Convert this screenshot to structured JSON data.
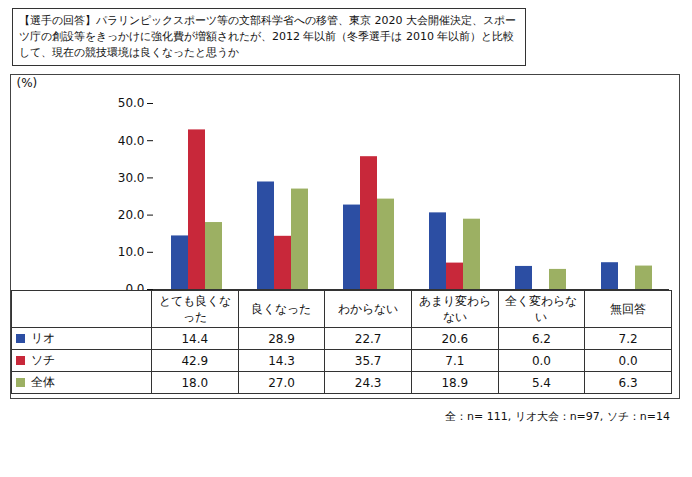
{
  "chart_data": {
    "type": "bar",
    "title": "【選手の回答】パラリンピックスポーツ等の文部科学省への移管、東京 2020 大会開催決定、スポーツ庁の創設等をきっかけに強化費が増額されたが、2012 年以前（冬季選手は 2010 年以前）と比較して、現在の競技環境は良くなったと思うか",
    "y_label": "(%)",
    "categories": [
      "とても良くなった",
      "良くなった",
      "わからない",
      "あまり変わらない",
      "全く変わらない",
      "無回答"
    ],
    "series": [
      {
        "name": "リオ",
        "color": "#2c4ea3",
        "values": [
          14.4,
          28.9,
          22.7,
          20.6,
          6.2,
          7.2
        ],
        "value_labels": [
          "14.4",
          "28.9",
          "22.7",
          "20.6",
          "6.2",
          "7.2"
        ]
      },
      {
        "name": "ソチ",
        "color": "#c8283a",
        "values": [
          42.9,
          14.3,
          35.7,
          7.1,
          0.0,
          0.0
        ],
        "value_labels": [
          "42.9",
          "14.3",
          "35.7",
          "7.1",
          "0.0",
          "0.0"
        ]
      },
      {
        "name": "全体",
        "color": "#9cb063",
        "values": [
          18.0,
          27.0,
          24.3,
          18.9,
          5.4,
          6.3
        ],
        "value_labels": [
          "18.0",
          "27.0",
          "24.3",
          "18.9",
          "5.4",
          "6.3"
        ]
      }
    ],
    "ylim": [
      0,
      50
    ],
    "yticks": [
      {
        "value": 0,
        "label": "0.0"
      },
      {
        "value": 10,
        "label": "10.0"
      },
      {
        "value": 20,
        "label": "20.0"
      },
      {
        "value": 30,
        "label": "30.0"
      },
      {
        "value": 40,
        "label": "40.0"
      },
      {
        "value": 50,
        "label": "50.0"
      }
    ],
    "grid": false,
    "annotation": "全：n= 111, リオ大会：n=97, ソチ：n=14"
  }
}
